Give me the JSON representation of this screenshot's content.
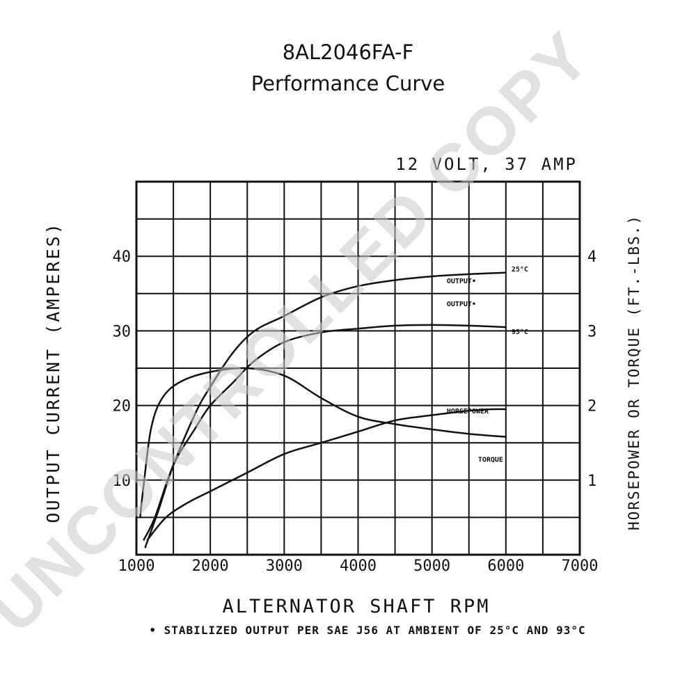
{
  "header": {
    "title": "8AL2046FA-F",
    "subtitle": "Performance Curve"
  },
  "watermark": "UNCONTROLLED COPY",
  "chart_data": {
    "type": "line",
    "subtitle": "12 VOLT, 37 AMP",
    "xlabel": "ALTERNATOR SHAFT RPM",
    "ylabel": "OUTPUT CURRENT (AMPERES)",
    "y2label": "HORSEPOWER OR TORQUE (FT.-LBS.)",
    "footnote": "• STABILIZED OUTPUT PER SAE J56 AT AMBIENT OF 25°C AND 93°C",
    "xlim": [
      1000,
      7000
    ],
    "ylim": [
      0,
      50
    ],
    "y2lim": [
      0,
      5
    ],
    "x_ticks": [
      "1000",
      "2000",
      "3000",
      "4000",
      "5000",
      "6000",
      "7000"
    ],
    "x_tick_values": [
      1000,
      2000,
      3000,
      4000,
      5000,
      6000,
      7000
    ],
    "y_ticks": [
      "10",
      "20",
      "30",
      "40"
    ],
    "y_tick_values": [
      10,
      20,
      30,
      40
    ],
    "y2_ticks": [
      "1",
      "2",
      "3",
      "4"
    ],
    "y2_tick_values": [
      1,
      2,
      3,
      4
    ],
    "grid": true,
    "series": [
      {
        "name": "OUTPUT• 25°C",
        "axis": "left",
        "x": [
          1120,
          1300,
          1500,
          1800,
          2000,
          2300,
          2600,
          3000,
          3500,
          4000,
          4500,
          5000,
          5500,
          6000
        ],
        "y": [
          1,
          6,
          12,
          19,
          22.5,
          27,
          30,
          32,
          34.5,
          36,
          36.8,
          37.3,
          37.6,
          37.8
        ]
      },
      {
        "name": "OUTPUT• 93°C",
        "axis": "left",
        "x": [
          1100,
          1250,
          1500,
          1800,
          2000,
          2300,
          2600,
          3000,
          3500,
          4000,
          4500,
          5000,
          5500,
          6000
        ],
        "y": [
          2,
          5,
          12,
          17,
          20,
          23,
          26,
          28.5,
          29.8,
          30.3,
          30.7,
          30.8,
          30.7,
          30.5
        ]
      },
      {
        "name": "HORSEPOWER",
        "axis": "right",
        "x": [
          1150,
          1400,
          1700,
          2000,
          2500,
          3000,
          3500,
          4000,
          4500,
          5000,
          5500,
          5800,
          6000
        ],
        "y": [
          0.2,
          0.5,
          0.7,
          0.85,
          1.1,
          1.35,
          1.5,
          1.65,
          1.8,
          1.87,
          1.93,
          1.95,
          1.95
        ]
      },
      {
        "name": "TORQUE",
        "axis": "right",
        "x": [
          1050,
          1100,
          1200,
          1350,
          1600,
          2000,
          2500,
          3000,
          3500,
          4000,
          4500,
          5000,
          5500,
          6000
        ],
        "y": [
          0.5,
          0.95,
          1.7,
          2.1,
          2.32,
          2.45,
          2.5,
          2.4,
          2.1,
          1.85,
          1.75,
          1.68,
          1.62,
          1.58
        ]
      }
    ],
    "curve_labels": [
      {
        "text": "OUTPUT•",
        "series": 0
      },
      {
        "text": "25°C",
        "series": 0
      },
      {
        "text": "OUTPUT•",
        "series": 1
      },
      {
        "text": "93°C",
        "series": 1
      },
      {
        "text": "HORSEPOWER",
        "series": 2
      },
      {
        "text": "TORQUE",
        "series": 3
      }
    ]
  }
}
